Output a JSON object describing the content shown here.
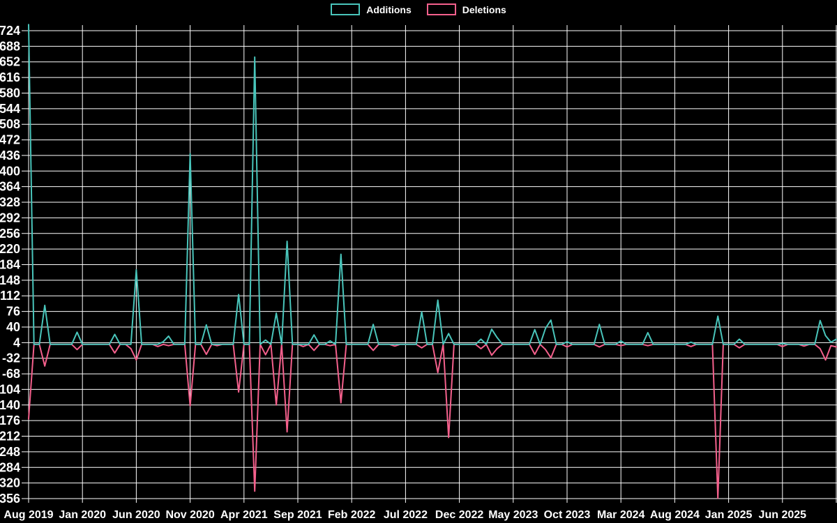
{
  "legend": {
    "items": [
      {
        "label": "Additions",
        "color": "#49c5bb"
      },
      {
        "label": "Deletions",
        "color": "#f4608c"
      }
    ]
  },
  "chart_data": {
    "type": "line",
    "title": "",
    "legend_position": "top",
    "background": "#000000",
    "grid_color": "#ffffff",
    "text_color": "#ffffff",
    "grid": true,
    "x_tick_labels": [
      "Aug 2019",
      "Jan 2020",
      "Jun 2020",
      "Nov 2020",
      "Apr 2021",
      "Sep 2021",
      "Feb 2022",
      "Jul 2022",
      "Dec 2022",
      "May 2023",
      "Oct 2023",
      "Mar 2024",
      "Aug 2024",
      "Jan 2025",
      "Jun 2025"
    ],
    "x_tick_step_months": 5,
    "has_extra_unlabeled_final_tick": true,
    "x_range_months": 75,
    "sample_step_months": 0.5,
    "y_ticks": [
      724,
      688,
      652,
      616,
      580,
      544,
      508,
      472,
      436,
      400,
      364,
      328,
      292,
      256,
      220,
      184,
      148,
      112,
      76,
      40,
      4,
      -32,
      -68,
      -104,
      -140,
      -176,
      -212,
      -248,
      -284,
      -320,
      -356
    ],
    "y_tick_step": 36,
    "ylim": [
      -358,
      734
    ],
    "baseline": 0,
    "series": [
      {
        "name": "Additions",
        "color": "#49c5bb"
      },
      {
        "name": "Deletions",
        "color": "#f4608c"
      }
    ],
    "points": [
      {
        "m": 0,
        "label": "Aug 2019",
        "additions": 738,
        "deletions": -172
      },
      {
        "m": 1.5,
        "label": "Sep 2019",
        "additions": 90,
        "deletions": -50
      },
      {
        "m": 4.5,
        "label": "Dec 2019",
        "additions": 28,
        "deletions": -12
      },
      {
        "m": 8,
        "label": "Apr 2020",
        "additions": 23,
        "deletions": -20
      },
      {
        "m": 9.5,
        "label": "May 2020",
        "additions": 0,
        "deletions": -10
      },
      {
        "m": 10,
        "label": "Jun 2020",
        "additions": 172,
        "deletions": -36
      },
      {
        "m": 12,
        "label": "Aug 2020",
        "additions": 0,
        "deletions": -5
      },
      {
        "m": 12.5,
        "label": "Aug 2020",
        "additions": 6,
        "deletions": 0
      },
      {
        "m": 13,
        "label": "Sep 2020",
        "additions": 19,
        "deletions": -3
      },
      {
        "m": 15,
        "label": "Nov 2020",
        "additions": 440,
        "deletions": -142
      },
      {
        "m": 16.5,
        "label": "Dec 2020",
        "additions": 45,
        "deletions": -23
      },
      {
        "m": 17.5,
        "label": "Jan 2021",
        "additions": 0,
        "deletions": -3
      },
      {
        "m": 19.5,
        "label": "Apr 2021",
        "additions": 115,
        "deletions": -110
      },
      {
        "m": 21,
        "label": "May 2021",
        "additions": 663,
        "deletions": -339
      },
      {
        "m": 22,
        "label": "Jun 2021",
        "additions": 10,
        "deletions": -24
      },
      {
        "m": 23,
        "label": "Jul 2021",
        "additions": 72,
        "deletions": -140
      },
      {
        "m": 24,
        "label": "Aug 2021",
        "additions": 238,
        "deletions": -202
      },
      {
        "m": 25.5,
        "label": "Sep 2021",
        "additions": 0,
        "deletions": -5
      },
      {
        "m": 26.5,
        "label": "Oct 2021",
        "additions": 22,
        "deletions": -14
      },
      {
        "m": 28,
        "label": "Dec 2021",
        "additions": 8,
        "deletions": -3
      },
      {
        "m": 29,
        "label": "Jan 2022",
        "additions": 208,
        "deletions": -135
      },
      {
        "m": 32,
        "label": "Apr 2022",
        "additions": 46,
        "deletions": -14
      },
      {
        "m": 34,
        "label": "Jun 2022",
        "additions": 0,
        "deletions": -4
      },
      {
        "m": 36.5,
        "label": "Sep 2022",
        "additions": 75,
        "deletions": -8
      },
      {
        "m": 38,
        "label": "Oct 2022",
        "additions": 102,
        "deletions": -65
      },
      {
        "m": 39,
        "label": "Nov 2022",
        "additions": 25,
        "deletions": -215
      },
      {
        "m": 42,
        "label": "Feb 2023",
        "additions": 12,
        "deletions": -10
      },
      {
        "m": 43,
        "label": "Mar 2023",
        "additions": 35,
        "deletions": -25
      },
      {
        "m": 43.5,
        "label": "Apr 2023",
        "additions": 16,
        "deletions": -10
      },
      {
        "m": 47,
        "label": "Jul 2023",
        "additions": 34,
        "deletions": -23
      },
      {
        "m": 48,
        "label": "Aug 2023",
        "additions": 37,
        "deletions": -12
      },
      {
        "m": 48.5,
        "label": "Sep 2023",
        "additions": 56,
        "deletions": -31
      },
      {
        "m": 50,
        "label": "Oct 2023",
        "additions": 6,
        "deletions": -6
      },
      {
        "m": 53,
        "label": "Jan 2024",
        "additions": 46,
        "deletions": -6
      },
      {
        "m": 55,
        "label": "Mar 2024",
        "additions": 8,
        "deletions": -3
      },
      {
        "m": 57.5,
        "label": "Jun 2024",
        "additions": 27,
        "deletions": -3
      },
      {
        "m": 61.5,
        "label": "Sep 2024",
        "additions": 5,
        "deletions": -5
      },
      {
        "m": 64,
        "label": "Dec 2024",
        "additions": 65,
        "deletions": -355
      },
      {
        "m": 66,
        "label": "Feb 2025",
        "additions": 12,
        "deletions": -8
      },
      {
        "m": 70,
        "label": "Jun 2025",
        "additions": 2,
        "deletions": -5
      },
      {
        "m": 72,
        "label": "Aug 2025",
        "additions": 0,
        "deletions": -4
      },
      {
        "m": 73.5,
        "label": "Sep 2025",
        "additions": 55,
        "deletions": -10
      },
      {
        "m": 74,
        "label": "Oct 2025",
        "additions": 20,
        "deletions": -36
      },
      {
        "m": 74.5,
        "label": "Oct 2025",
        "additions": 5,
        "deletions": -3
      },
      {
        "m": 75,
        "label": "Nov 2025",
        "additions": 12,
        "deletions": -6
      }
    ]
  }
}
